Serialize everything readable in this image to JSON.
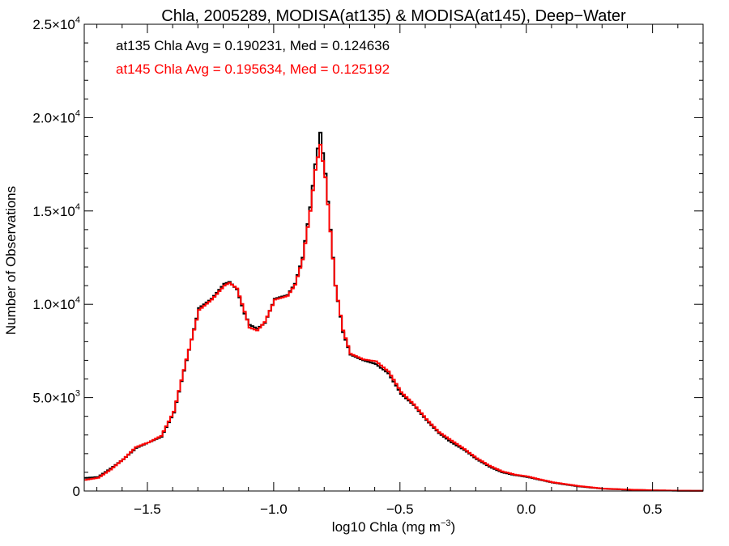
{
  "chart_data": {
    "type": "histogram",
    "title": "Chla, 2005289, MODISA(at135) & MODISA(at145), Deep−Water",
    "xlabel_main": "log10 Chla (mg m",
    "xlabel_sup": "−3",
    "xlabel_close": ")",
    "ylabel": "Number of Observations",
    "xlim": [
      -1.75,
      0.7
    ],
    "ylim": [
      0,
      25000
    ],
    "x_ticks": [
      {
        "value": -1.5,
        "label": "−1.5"
      },
      {
        "value": -1.0,
        "label": "−1.0"
      },
      {
        "value": -0.5,
        "label": "−0.5"
      },
      {
        "value": 0.0,
        "label": "0.0"
      },
      {
        "value": 0.5,
        "label": "0.5"
      }
    ],
    "x_minor_step": 0.1,
    "y_ticks": [
      {
        "value": 0,
        "mant": "0",
        "exp": ""
      },
      {
        "value": 5000,
        "mant": "5.0×10",
        "exp": "3"
      },
      {
        "value": 10000,
        "mant": "1.0×10",
        "exp": "4"
      },
      {
        "value": 15000,
        "mant": "1.5×10",
        "exp": "4"
      },
      {
        "value": 20000,
        "mant": "2.0×10",
        "exp": "4"
      },
      {
        "value": 25000,
        "mant": "2.5×10",
        "exp": "4"
      }
    ],
    "y_minor_step": 1000,
    "annotations": [
      {
        "text": "at135 Chla Avg = 0.190231, Med = 0.124636",
        "color": "#000000"
      },
      {
        "text": "at145 Chla Avg = 0.195634, Med = 0.125192",
        "color": "#ff0000"
      }
    ],
    "series": [
      {
        "color": "#000000",
        "points": [
          [
            -1.75,
            700
          ],
          [
            -1.7,
            750
          ],
          [
            -1.65,
            1200
          ],
          [
            -1.6,
            1700
          ],
          [
            -1.55,
            2300
          ],
          [
            -1.5,
            2600
          ],
          [
            -1.45,
            2900
          ],
          [
            -1.4,
            4200
          ],
          [
            -1.35,
            7000
          ],
          [
            -1.3,
            9800
          ],
          [
            -1.25,
            10300
          ],
          [
            -1.2,
            11100
          ],
          [
            -1.18,
            11200
          ],
          [
            -1.15,
            10800
          ],
          [
            -1.12,
            9500
          ],
          [
            -1.1,
            8900
          ],
          [
            -1.07,
            8700
          ],
          [
            -1.04,
            9000
          ],
          [
            -1.0,
            10300
          ],
          [
            -0.95,
            10500
          ],
          [
            -0.92,
            11100
          ],
          [
            -0.89,
            12500
          ],
          [
            -0.86,
            15200
          ],
          [
            -0.84,
            17500
          ],
          [
            -0.82,
            19200
          ],
          [
            -0.8,
            17000
          ],
          [
            -0.78,
            14000
          ],
          [
            -0.76,
            11000
          ],
          [
            -0.73,
            8500
          ],
          [
            -0.7,
            7300
          ],
          [
            -0.65,
            7000
          ],
          [
            -0.6,
            6800
          ],
          [
            -0.55,
            6300
          ],
          [
            -0.5,
            5200
          ],
          [
            -0.45,
            4600
          ],
          [
            -0.4,
            3800
          ],
          [
            -0.35,
            3100
          ],
          [
            -0.3,
            2600
          ],
          [
            -0.25,
            2200
          ],
          [
            -0.2,
            1700
          ],
          [
            -0.15,
            1300
          ],
          [
            -0.1,
            1000
          ],
          [
            -0.05,
            850
          ],
          [
            0.0,
            750
          ],
          [
            0.05,
            600
          ],
          [
            0.1,
            450
          ],
          [
            0.2,
            250
          ],
          [
            0.3,
            120
          ],
          [
            0.4,
            70
          ],
          [
            0.5,
            30
          ],
          [
            0.6,
            15
          ],
          [
            0.7,
            10
          ]
        ]
      },
      {
        "color": "#ff0000",
        "points": [
          [
            -1.75,
            600
          ],
          [
            -1.7,
            700
          ],
          [
            -1.65,
            1150
          ],
          [
            -1.6,
            1700
          ],
          [
            -1.55,
            2350
          ],
          [
            -1.5,
            2600
          ],
          [
            -1.45,
            2950
          ],
          [
            -1.4,
            4250
          ],
          [
            -1.35,
            7050
          ],
          [
            -1.3,
            9700
          ],
          [
            -1.25,
            10250
          ],
          [
            -1.2,
            11000
          ],
          [
            -1.18,
            11150
          ],
          [
            -1.15,
            10850
          ],
          [
            -1.12,
            9600
          ],
          [
            -1.1,
            8750
          ],
          [
            -1.07,
            8600
          ],
          [
            -1.04,
            9050
          ],
          [
            -1.0,
            10250
          ],
          [
            -0.95,
            10450
          ],
          [
            -0.92,
            11050
          ],
          [
            -0.89,
            12400
          ],
          [
            -0.86,
            15000
          ],
          [
            -0.84,
            17200
          ],
          [
            -0.82,
            18550
          ],
          [
            -0.8,
            16800
          ],
          [
            -0.78,
            13900
          ],
          [
            -0.76,
            11000
          ],
          [
            -0.73,
            8600
          ],
          [
            -0.7,
            7350
          ],
          [
            -0.65,
            7050
          ],
          [
            -0.6,
            6950
          ],
          [
            -0.55,
            6400
          ],
          [
            -0.5,
            5300
          ],
          [
            -0.45,
            4650
          ],
          [
            -0.4,
            3850
          ],
          [
            -0.35,
            3150
          ],
          [
            -0.3,
            2700
          ],
          [
            -0.25,
            2250
          ],
          [
            -0.2,
            1750
          ],
          [
            -0.15,
            1350
          ],
          [
            -0.1,
            1050
          ],
          [
            -0.05,
            880
          ],
          [
            0.0,
            780
          ],
          [
            0.05,
            620
          ],
          [
            0.1,
            470
          ],
          [
            0.2,
            270
          ],
          [
            0.3,
            130
          ],
          [
            0.4,
            75
          ],
          [
            0.5,
            35
          ],
          [
            0.6,
            18
          ],
          [
            0.7,
            12
          ]
        ]
      }
    ]
  }
}
